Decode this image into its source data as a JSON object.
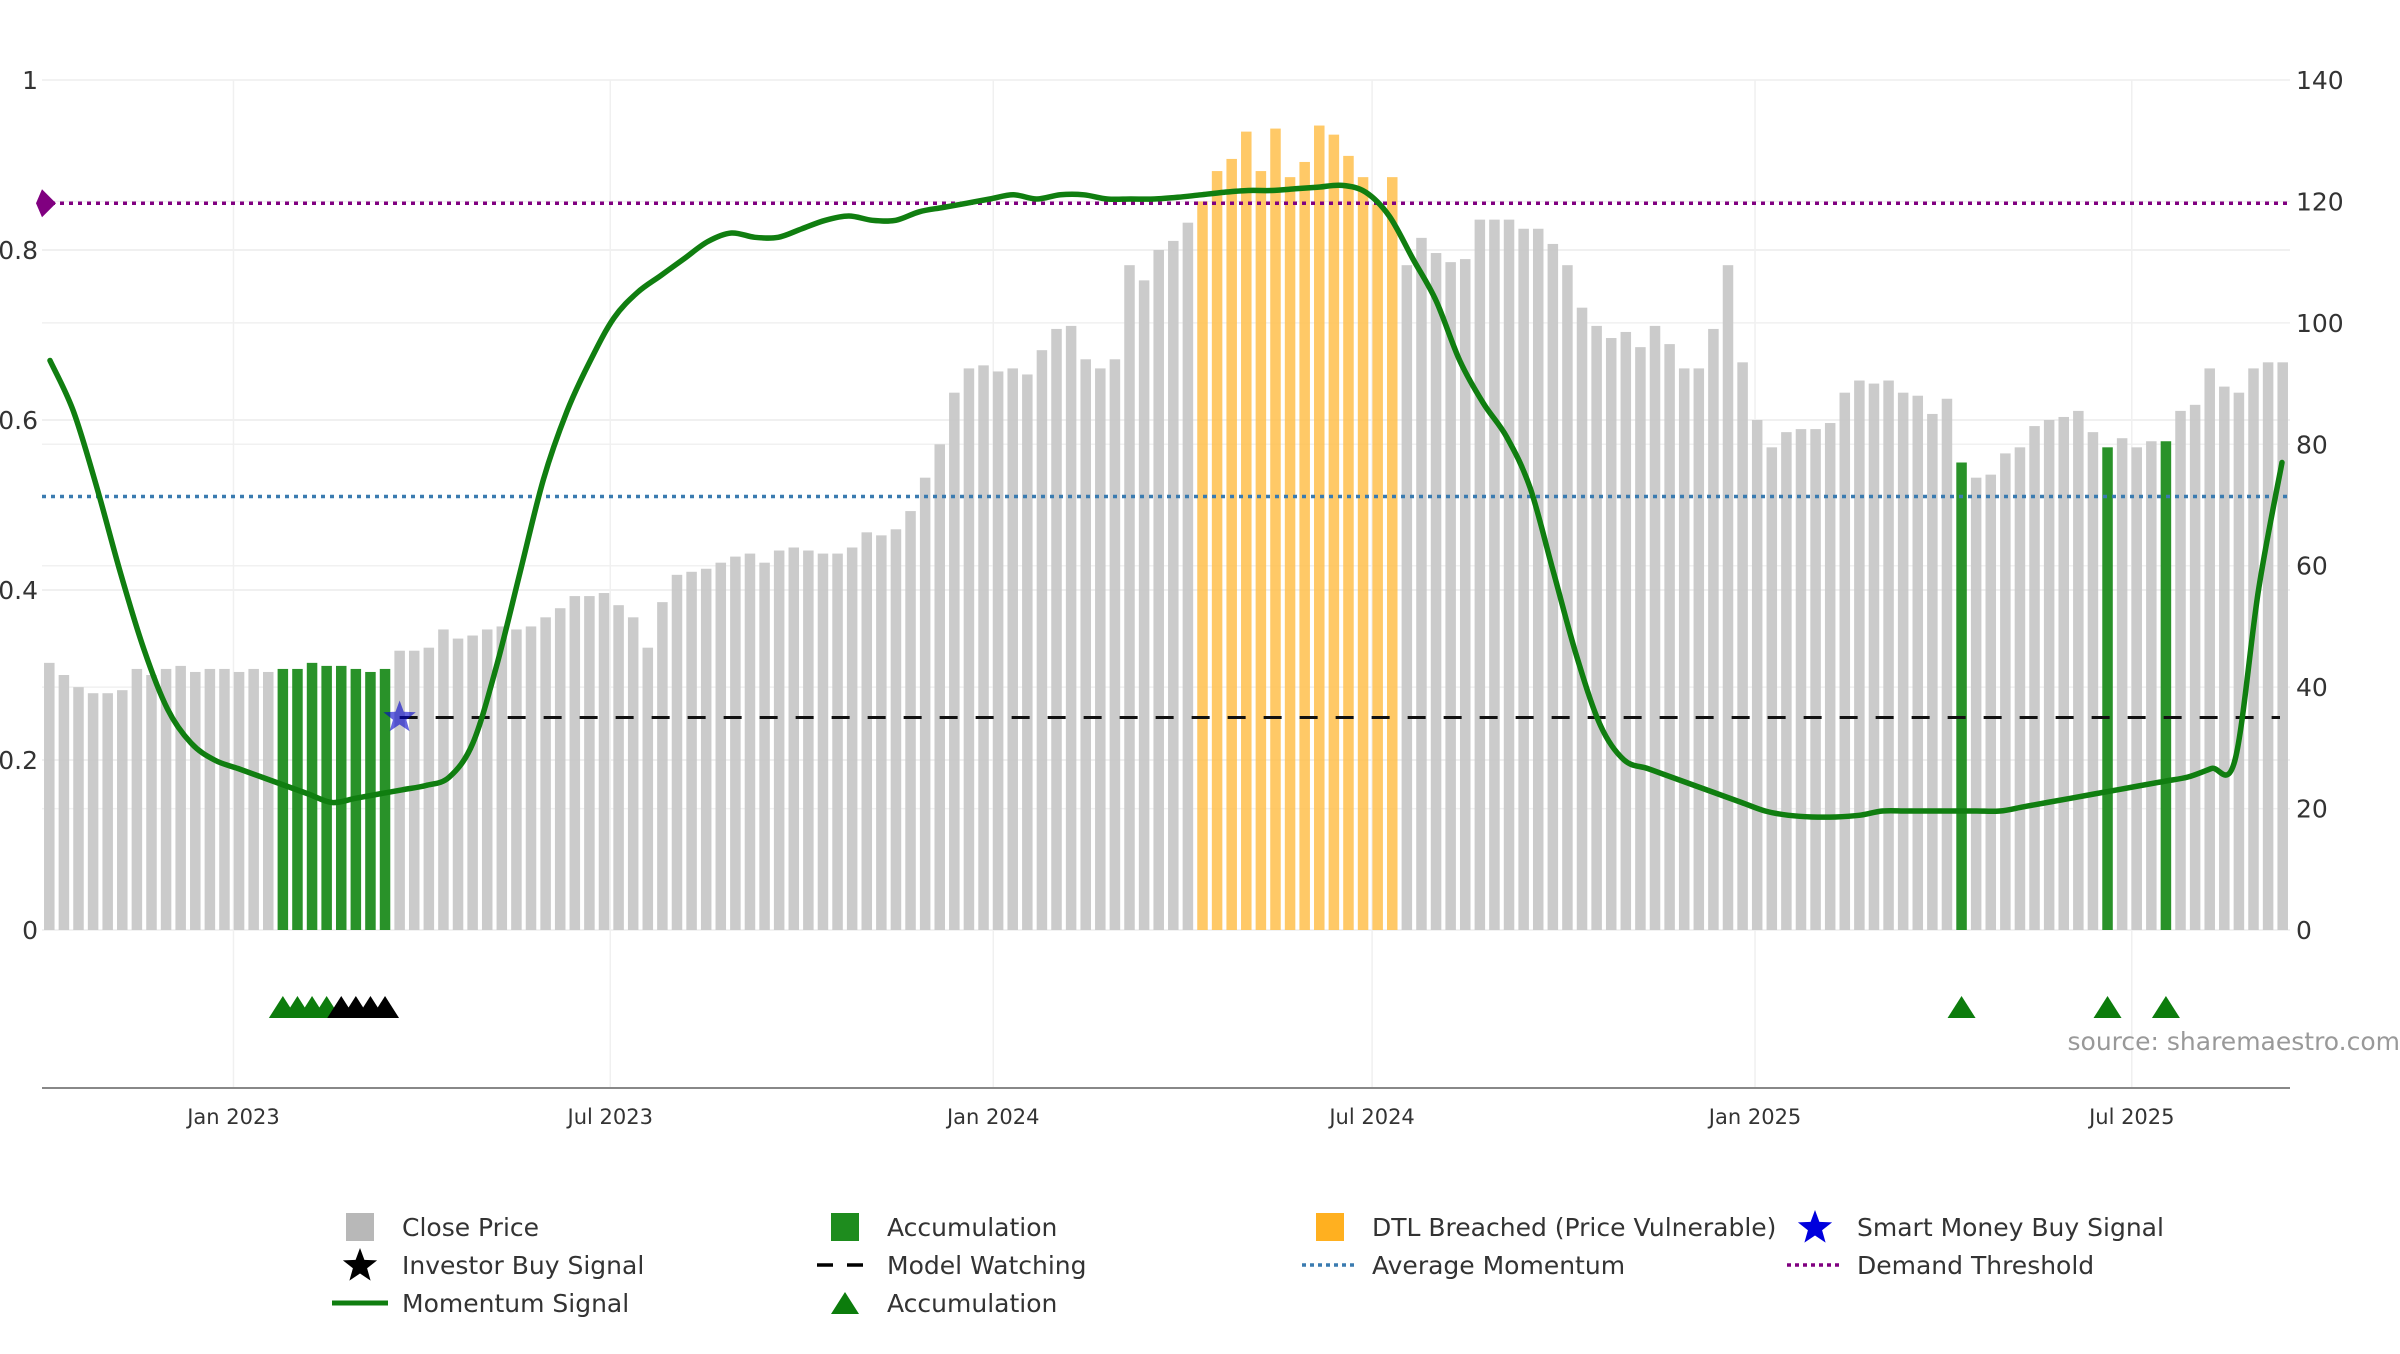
{
  "chart_data": {
    "type": "bar",
    "source_text": "source: sharemaestro.com",
    "left_axis": {
      "min": 0,
      "max": 1,
      "ticks": [
        0,
        0.2,
        0.4,
        0.6,
        0.8,
        1
      ],
      "tick_labels": [
        "0",
        "0.2",
        "0.4",
        "0.6",
        "0.8",
        "1"
      ]
    },
    "right_axis": {
      "min": 0,
      "max": 140,
      "ticks": [
        0,
        20,
        40,
        60,
        80,
        100,
        120,
        140
      ],
      "tick_labels": [
        "0",
        "20",
        "40",
        "60",
        "80",
        "100",
        "120",
        "140"
      ]
    },
    "x_axis": {
      "start": "2022-10-01",
      "end": "2025-09-15",
      "ticks": [
        "2023-01-01",
        "2023-07-01",
        "2024-01-01",
        "2024-07-01",
        "2025-01-01",
        "2025-07-01"
      ],
      "tick_labels": [
        "Jan 2023",
        "Jul 2023",
        "Jan 2024",
        "Jul 2024",
        "Jan 2025",
        "Jul 2025"
      ]
    },
    "close_price": {
      "name": "Close Price",
      "values": [
        44,
        42,
        40,
        39,
        39,
        39.5,
        43,
        42,
        43,
        43.5,
        42.5,
        43,
        43,
        42.5,
        43,
        42.5,
        43,
        43,
        44,
        43.5,
        43.5,
        43,
        42.5,
        43,
        46,
        46,
        46.5,
        49.5,
        48,
        48.5,
        49.5,
        50,
        49.5,
        50,
        51.5,
        53,
        55,
        55,
        55.5,
        53.5,
        51.5,
        46.5,
        54,
        58.5,
        59,
        59.5,
        60.5,
        61.5,
        62,
        60.5,
        62.5,
        63,
        62.5,
        62,
        62,
        63,
        65.5,
        65,
        66,
        69,
        74.5,
        80,
        88.5,
        92.5,
        93,
        92,
        92.5,
        91.5,
        95.5,
        99,
        99.5,
        94,
        92.5,
        94,
        109.5,
        107,
        112,
        113.5,
        116.5,
        120,
        125,
        127,
        131.5,
        125,
        132,
        124,
        126.5,
        132.5,
        131,
        127.5,
        124,
        119.5,
        124,
        109.5,
        114,
        111.5,
        110,
        110.5,
        117,
        117,
        117,
        115.5,
        115.5,
        113,
        109.5,
        102.5,
        99.5,
        97.5,
        98.5,
        96,
        99.5,
        96.5,
        92.5,
        92.5,
        99,
        109.5,
        93.5,
        84,
        79.5,
        82,
        82.5,
        82.5,
        83.5,
        88.5,
        90.5,
        90,
        90.5,
        88.5,
        88,
        85,
        87.5,
        77,
        74.5,
        75,
        78.5,
        79.5,
        83,
        84,
        84.5,
        85.5,
        82,
        79.5,
        81,
        79.5,
        80.5,
        80.5,
        85.5,
        86.5,
        92.5,
        89.5,
        88.5,
        92.5,
        93.5,
        93.5
      ],
      "color": "#c8c8c8"
    },
    "accumulation_bars": {
      "name": "Accumulation",
      "indices": [
        16,
        17,
        18,
        19,
        20,
        21,
        22,
        23,
        131,
        141,
        145
      ],
      "color": "#1e8c1e"
    },
    "dtl_breached": {
      "name": "DTL Breached (Price Vulnerable)",
      "indices": [
        79,
        80,
        81,
        82,
        83,
        84,
        85,
        86,
        87,
        88,
        89,
        90,
        91,
        92
      ],
      "color": "#ffc04c"
    },
    "momentum": {
      "name": "Momentum Signal",
      "color": "#107e10",
      "values": [
        0.67,
        0.61,
        0.52,
        0.42,
        0.33,
        0.26,
        0.22,
        0.2,
        0.19,
        0.18,
        0.17,
        0.16,
        0.15,
        0.155,
        0.16,
        0.165,
        0.17,
        0.18,
        0.22,
        0.31,
        0.42,
        0.53,
        0.61,
        0.67,
        0.72,
        0.75,
        0.77,
        0.79,
        0.81,
        0.82,
        0.815,
        0.815,
        0.825,
        0.835,
        0.84,
        0.835,
        0.835,
        0.845,
        0.85,
        0.855,
        0.86,
        0.865,
        0.86,
        0.865,
        0.865,
        0.86,
        0.86,
        0.86,
        0.862,
        0.865,
        0.868,
        0.87,
        0.87,
        0.872,
        0.874,
        0.876,
        0.868,
        0.84,
        0.79,
        0.74,
        0.67,
        0.62,
        0.58,
        0.52,
        0.42,
        0.32,
        0.24,
        0.2,
        0.19,
        0.18,
        0.17,
        0.16,
        0.15,
        0.14,
        0.135,
        0.133,
        0.133,
        0.135,
        0.14,
        0.14,
        0.14,
        0.14,
        0.14,
        0.14,
        0.145,
        0.15,
        0.155,
        0.16,
        0.165,
        0.17,
        0.175,
        0.18,
        0.19,
        0.2,
        0.4,
        0.55
      ]
    },
    "average_momentum": {
      "name": "Average Momentum",
      "value": 0.51,
      "color": "#3a7bb0"
    },
    "demand_threshold": {
      "name": "Demand Threshold",
      "value": 0.855,
      "color": "#800080"
    },
    "model_watching": {
      "name": "Model Watching",
      "value": 0.25,
      "start_index": 24,
      "color": "#111111"
    },
    "smart_money": {
      "name": "Smart Money Buy Signal",
      "index": 24,
      "value": 0.25,
      "color": "#0000cc"
    },
    "investor_buy": {
      "name": "Investor Buy Signal",
      "indices": [
        20,
        21,
        22,
        23
      ],
      "color": "#000000"
    },
    "accumulation_markers": {
      "name": "Accumulation",
      "indices": [
        16,
        17,
        18,
        19,
        131,
        141,
        145
      ],
      "color": "#0c7c0c"
    },
    "legend": [
      {
        "label": "Close Price",
        "symbol": "square",
        "color": "#b8b8b8"
      },
      {
        "label": "Accumulation",
        "symbol": "square",
        "color": "#1e8c1e"
      },
      {
        "label": "DTL Breached (Price Vulnerable)",
        "symbol": "square",
        "color": "#ffb020"
      },
      {
        "label": "Smart Money Buy Signal",
        "symbol": "star",
        "color": "#0000dd"
      },
      {
        "label": "Investor Buy Signal",
        "symbol": "star",
        "color": "#000000"
      },
      {
        "label": "Model Watching",
        "symbol": "dash",
        "color": "#000000"
      },
      {
        "label": "Average Momentum",
        "symbol": "dot",
        "color": "#3a7bb0"
      },
      {
        "label": "Demand Threshold",
        "symbol": "dot",
        "color": "#800080"
      },
      {
        "label": "Momentum Signal",
        "symbol": "line",
        "color": "#107e10"
      },
      {
        "label": "Accumulation",
        "symbol": "triangle",
        "color": "#0c7c0c"
      }
    ]
  }
}
